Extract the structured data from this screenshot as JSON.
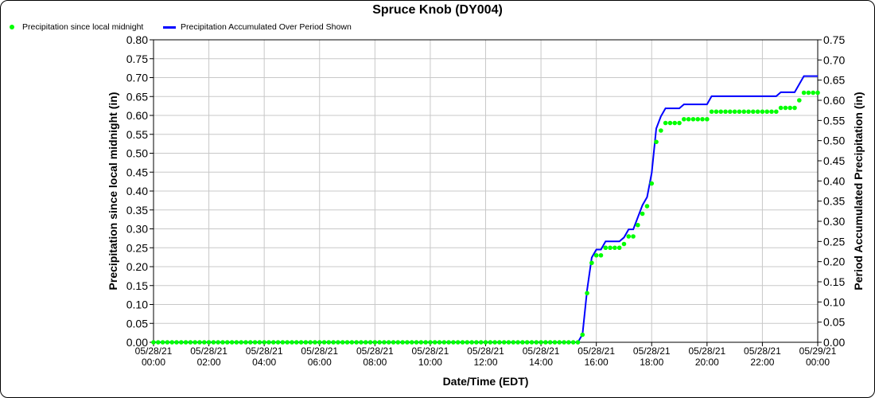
{
  "chart_data": {
    "type": "line",
    "title": "Spruce Knob (DY004)",
    "xlabel": "Date/Time (EDT)",
    "ylabel": "Precipitation since local midnight (in)",
    "ylabel_right": "Period Accumulated Precipitation (in)",
    "ylim": [
      0,
      0.8
    ],
    "ylim_right": [
      0,
      0.75
    ],
    "grid": true,
    "legend": "top-left",
    "x_ticks": [
      {
        "date": "05/28/21",
        "time": "00:00"
      },
      {
        "date": "05/28/21",
        "time": "02:00"
      },
      {
        "date": "05/28/21",
        "time": "04:00"
      },
      {
        "date": "05/28/21",
        "time": "06:00"
      },
      {
        "date": "05/28/21",
        "time": "08:00"
      },
      {
        "date": "05/28/21",
        "time": "10:00"
      },
      {
        "date": "05/28/21",
        "time": "12:00"
      },
      {
        "date": "05/28/21",
        "time": "14:00"
      },
      {
        "date": "05/28/21",
        "time": "16:00"
      },
      {
        "date": "05/28/21",
        "time": "18:00"
      },
      {
        "date": "05/28/21",
        "time": "20:00"
      },
      {
        "date": "05/28/21",
        "time": "22:00"
      },
      {
        "date": "05/29/21",
        "time": "00:00"
      }
    ],
    "y_ticks": [
      "0.00",
      "0.05",
      "0.10",
      "0.15",
      "0.20",
      "0.25",
      "0.30",
      "0.35",
      "0.40",
      "0.45",
      "0.50",
      "0.55",
      "0.60",
      "0.65",
      "0.70",
      "0.75",
      "0.80"
    ],
    "y_ticks_right": [
      "0.00",
      "0.05",
      "0.10",
      "0.15",
      "0.20",
      "0.25",
      "0.30",
      "0.35",
      "0.40",
      "0.45",
      "0.50",
      "0.55",
      "0.60",
      "0.65",
      "0.70",
      "0.75"
    ],
    "x": [
      "00:00",
      "00:10",
      "00:20",
      "00:30",
      "00:40",
      "00:50",
      "01:00",
      "01:10",
      "01:20",
      "01:30",
      "01:40",
      "01:50",
      "02:00",
      "02:10",
      "02:20",
      "02:30",
      "02:40",
      "02:50",
      "03:00",
      "03:10",
      "03:20",
      "03:30",
      "03:40",
      "03:50",
      "04:00",
      "04:10",
      "04:20",
      "04:30",
      "04:40",
      "04:50",
      "05:00",
      "05:10",
      "05:20",
      "05:30",
      "05:40",
      "05:50",
      "06:00",
      "06:10",
      "06:20",
      "06:30",
      "06:40",
      "06:50",
      "07:00",
      "07:10",
      "07:20",
      "07:30",
      "07:40",
      "07:50",
      "08:00",
      "08:10",
      "08:20",
      "08:30",
      "08:40",
      "08:50",
      "09:00",
      "09:10",
      "09:20",
      "09:30",
      "09:40",
      "09:50",
      "10:00",
      "10:10",
      "10:20",
      "10:30",
      "10:40",
      "10:50",
      "11:00",
      "11:10",
      "11:20",
      "11:30",
      "11:40",
      "11:50",
      "12:00",
      "12:10",
      "12:20",
      "12:30",
      "12:40",
      "12:50",
      "13:00",
      "13:10",
      "13:20",
      "13:30",
      "13:40",
      "13:50",
      "14:00",
      "14:10",
      "14:20",
      "14:30",
      "14:40",
      "14:50",
      "15:00",
      "15:10",
      "15:20",
      "15:30",
      "15:40",
      "15:50",
      "16:00",
      "16:10",
      "16:20",
      "16:30",
      "16:40",
      "16:50",
      "17:00",
      "17:10",
      "17:20",
      "17:30",
      "17:40",
      "17:50",
      "18:00",
      "18:10",
      "18:20",
      "18:30",
      "18:40",
      "18:50",
      "19:00",
      "19:10",
      "19:20",
      "19:30",
      "19:40",
      "19:50",
      "20:00",
      "20:10",
      "20:20",
      "20:30",
      "20:40",
      "20:50",
      "21:00",
      "21:10",
      "21:20",
      "21:30",
      "21:40",
      "21:50",
      "22:00",
      "22:10",
      "22:20",
      "22:30",
      "22:40",
      "22:50",
      "23:00",
      "23:10",
      "23:20",
      "23:30",
      "23:40",
      "23:50",
      "00:00"
    ],
    "series": [
      {
        "name": "Precipitation since local midnight",
        "axis": "left",
        "style": "markers",
        "color": "#00ff00",
        "values": [
          0,
          0,
          0,
          0,
          0,
          0,
          0,
          0,
          0,
          0,
          0,
          0,
          0,
          0,
          0,
          0,
          0,
          0,
          0,
          0,
          0,
          0,
          0,
          0,
          0,
          0,
          0,
          0,
          0,
          0,
          0,
          0,
          0,
          0,
          0,
          0,
          0,
          0,
          0,
          0,
          0,
          0,
          0,
          0,
          0,
          0,
          0,
          0,
          0,
          0,
          0,
          0,
          0,
          0,
          0,
          0,
          0,
          0,
          0,
          0,
          0,
          0,
          0,
          0,
          0,
          0,
          0,
          0,
          0,
          0,
          0,
          0,
          0,
          0,
          0,
          0,
          0,
          0,
          0,
          0,
          0,
          0,
          0,
          0,
          0,
          0,
          0,
          0,
          0,
          0,
          0,
          0,
          0,
          0.02,
          0.13,
          0.21,
          0.23,
          0.23,
          0.25,
          0.25,
          0.25,
          0.25,
          0.26,
          0.28,
          0.28,
          0.31,
          0.34,
          0.36,
          0.42,
          0.53,
          0.56,
          0.58,
          0.58,
          0.58,
          0.58,
          0.59,
          0.59,
          0.59,
          0.59,
          0.59,
          0.59,
          0.61,
          0.61,
          0.61,
          0.61,
          0.61,
          0.61,
          0.61,
          0.61,
          0.61,
          0.61,
          0.61,
          0.61,
          0.61,
          0.61,
          0.61,
          0.62,
          0.62,
          0.62,
          0.62,
          0.64,
          0.66,
          0.66,
          0.66,
          0.66
        ]
      },
      {
        "name": "Precipitation Accumulated Over Period Shown",
        "axis": "right",
        "style": "line",
        "color": "#0000ff",
        "values": [
          0,
          0,
          0,
          0,
          0,
          0,
          0,
          0,
          0,
          0,
          0,
          0,
          0,
          0,
          0,
          0,
          0,
          0,
          0,
          0,
          0,
          0,
          0,
          0,
          0,
          0,
          0,
          0,
          0,
          0,
          0,
          0,
          0,
          0,
          0,
          0,
          0,
          0,
          0,
          0,
          0,
          0,
          0,
          0,
          0,
          0,
          0,
          0,
          0,
          0,
          0,
          0,
          0,
          0,
          0,
          0,
          0,
          0,
          0,
          0,
          0,
          0,
          0,
          0,
          0,
          0,
          0,
          0,
          0,
          0,
          0,
          0,
          0,
          0,
          0,
          0,
          0,
          0,
          0,
          0,
          0,
          0,
          0,
          0,
          0,
          0,
          0,
          0,
          0,
          0,
          0,
          0,
          0,
          0.02,
          0.13,
          0.21,
          0.23,
          0.23,
          0.25,
          0.25,
          0.25,
          0.25,
          0.26,
          0.28,
          0.28,
          0.31,
          0.34,
          0.36,
          0.42,
          0.53,
          0.56,
          0.58,
          0.58,
          0.58,
          0.58,
          0.59,
          0.59,
          0.59,
          0.59,
          0.59,
          0.59,
          0.61,
          0.61,
          0.61,
          0.61,
          0.61,
          0.61,
          0.61,
          0.61,
          0.61,
          0.61,
          0.61,
          0.61,
          0.61,
          0.61,
          0.61,
          0.62,
          0.62,
          0.62,
          0.62,
          0.64,
          0.66,
          0.66,
          0.66,
          0.66
        ]
      }
    ]
  }
}
